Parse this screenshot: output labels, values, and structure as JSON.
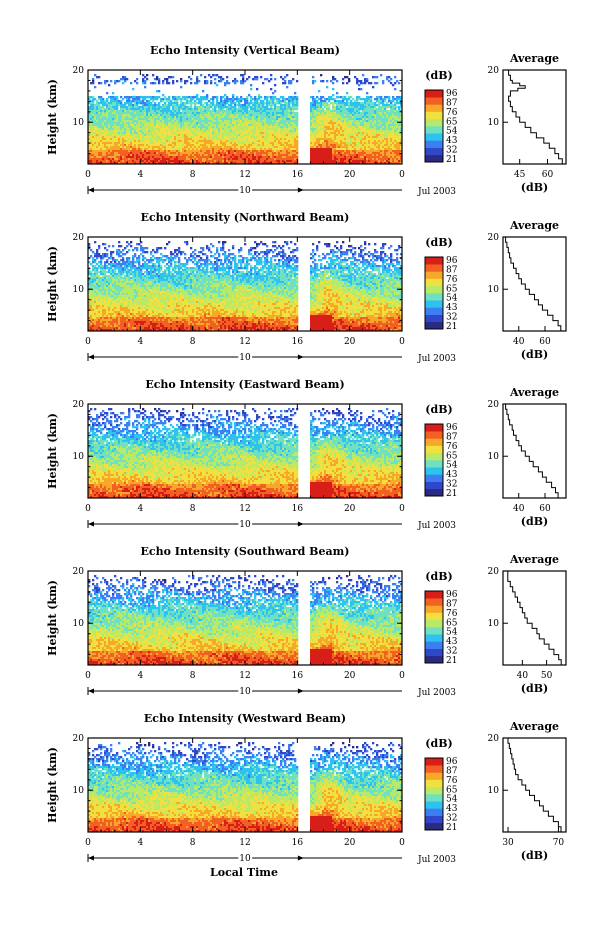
{
  "figure": {
    "xlabel_bottom": "Local Time",
    "date_label": "Jul 2003",
    "day_label": "10",
    "color_scale": [
      "#2a2a80",
      "#2f47c8",
      "#3b7ff0",
      "#2ec3ee",
      "#6fe0c0",
      "#b8ea6a",
      "#f0e040",
      "#f8a828",
      "#f26024",
      "#d81e18"
    ]
  },
  "chart_data": [
    {
      "type": "heatmap",
      "title": "Echo Intensity (Vertical Beam)",
      "ylabel": "Height (km)",
      "xlim": [
        0,
        24
      ],
      "ylim": [
        2,
        20
      ],
      "x_ticks": [
        "0",
        "4",
        "8",
        "12",
        "16",
        "20",
        "0"
      ],
      "y_ticks": [
        "10",
        "20"
      ],
      "colorbar": {
        "unit": "(dB)",
        "labels": [
          "96",
          "87",
          "76",
          "65",
          "54",
          "43",
          "32",
          "21"
        ]
      },
      "average": {
        "title": "Average",
        "xlabel": "(dB)",
        "x_ticks": [
          "45",
          "60"
        ],
        "xlim": [
          36,
          70
        ],
        "profile": [
          [
            2,
            70
          ],
          [
            3,
            68
          ],
          [
            4,
            66
          ],
          [
            5,
            64
          ],
          [
            6,
            61
          ],
          [
            7,
            58
          ],
          [
            8,
            54
          ],
          [
            9,
            51
          ],
          [
            10,
            48
          ],
          [
            11,
            45
          ],
          [
            12,
            43
          ],
          [
            13,
            41
          ],
          [
            14,
            40
          ],
          [
            15,
            39
          ],
          [
            16,
            40
          ],
          [
            16.5,
            44
          ],
          [
            17,
            48
          ],
          [
            17.5,
            45
          ],
          [
            18,
            41
          ],
          [
            19,
            40
          ],
          [
            20,
            39
          ]
        ]
      }
    },
    {
      "type": "heatmap",
      "title": "Echo Intensity (Northward Beam)",
      "ylabel": "Height (km)",
      "xlim": [
        0,
        24
      ],
      "ylim": [
        2,
        20
      ],
      "x_ticks": [
        "0",
        "4",
        "8",
        "12",
        "16",
        "20",
        "0"
      ],
      "y_ticks": [
        "10",
        "20"
      ],
      "colorbar": {
        "unit": "(dB)",
        "labels": [
          "96",
          "87",
          "76",
          "65",
          "54",
          "43",
          "32",
          "21"
        ]
      },
      "average": {
        "title": "Average",
        "xlabel": "(dB)",
        "x_ticks": [
          "40",
          "60"
        ],
        "xlim": [
          28,
          76
        ],
        "profile": [
          [
            2,
            74
          ],
          [
            3,
            72
          ],
          [
            4,
            70
          ],
          [
            5,
            66
          ],
          [
            6,
            62
          ],
          [
            7,
            58
          ],
          [
            8,
            55
          ],
          [
            9,
            52
          ],
          [
            10,
            48
          ],
          [
            11,
            45
          ],
          [
            12,
            42
          ],
          [
            13,
            40
          ],
          [
            14,
            38
          ],
          [
            15,
            36
          ],
          [
            16,
            34
          ],
          [
            17,
            33
          ],
          [
            18,
            32
          ],
          [
            19,
            31
          ],
          [
            20,
            30
          ]
        ]
      }
    },
    {
      "type": "heatmap",
      "title": "Echo Intensity (Eastward Beam)",
      "ylabel": "Height (km)",
      "xlim": [
        0,
        24
      ],
      "ylim": [
        2,
        20
      ],
      "x_ticks": [
        "0",
        "4",
        "8",
        "12",
        "16",
        "20",
        "0"
      ],
      "y_ticks": [
        "10",
        "20"
      ],
      "colorbar": {
        "unit": "(dB)",
        "labels": [
          "96",
          "87",
          "76",
          "65",
          "54",
          "43",
          "32",
          "21"
        ]
      },
      "average": {
        "title": "Average",
        "xlabel": "(dB)",
        "x_ticks": [
          "40",
          "60"
        ],
        "xlim": [
          28,
          76
        ],
        "profile": [
          [
            2,
            72
          ],
          [
            3,
            70
          ],
          [
            4,
            68
          ],
          [
            5,
            65
          ],
          [
            6,
            61
          ],
          [
            7,
            58
          ],
          [
            8,
            55
          ],
          [
            9,
            51
          ],
          [
            10,
            48
          ],
          [
            11,
            45
          ],
          [
            12,
            42
          ],
          [
            13,
            40
          ],
          [
            14,
            38
          ],
          [
            15,
            36
          ],
          [
            16,
            35
          ],
          [
            17,
            33
          ],
          [
            18,
            32
          ],
          [
            19,
            31
          ],
          [
            20,
            30
          ]
        ]
      }
    },
    {
      "type": "heatmap",
      "title": "Echo Intensity (Southward Beam)",
      "ylabel": "Height (km)",
      "xlim": [
        0,
        24
      ],
      "ylim": [
        2,
        20
      ],
      "x_ticks": [
        "0",
        "4",
        "8",
        "12",
        "16",
        "20",
        "0"
      ],
      "y_ticks": [
        "10",
        "20"
      ],
      "colorbar": {
        "unit": "(dB)",
        "labels": [
          "96",
          "87",
          "76",
          "65",
          "54",
          "43",
          "32",
          "21"
        ]
      },
      "average": {
        "title": "Average",
        "xlabel": "(dB)",
        "x_ticks": [
          "40",
          "50"
        ],
        "xlim": [
          32,
          58
        ],
        "profile": [
          [
            2,
            57
          ],
          [
            3,
            56
          ],
          [
            4,
            55
          ],
          [
            5,
            53
          ],
          [
            6,
            51
          ],
          [
            7,
            49
          ],
          [
            8,
            47
          ],
          [
            9,
            46
          ],
          [
            10,
            44
          ],
          [
            11,
            42
          ],
          [
            12,
            41
          ],
          [
            13,
            40
          ],
          [
            14,
            39
          ],
          [
            15,
            38
          ],
          [
            16,
            37
          ],
          [
            17,
            36
          ],
          [
            18,
            35
          ],
          [
            19,
            34
          ],
          [
            20,
            34
          ]
        ]
      }
    },
    {
      "type": "heatmap",
      "title": "Echo Intensity (Westward Beam)",
      "ylabel": "Height (km)",
      "xlim": [
        0,
        24
      ],
      "ylim": [
        2,
        20
      ],
      "x_ticks": [
        "0",
        "4",
        "8",
        "12",
        "16",
        "20",
        "0"
      ],
      "y_ticks": [
        "10",
        "20"
      ],
      "colorbar": {
        "unit": "(dB)",
        "labels": [
          "96",
          "87",
          "76",
          "65",
          "54",
          "43",
          "32",
          "21"
        ]
      },
      "average": {
        "title": "Average",
        "xlabel": "(dB)",
        "x_ticks": [
          "30",
          "70"
        ],
        "xlim": [
          26,
          76
        ],
        "profile": [
          [
            2,
            74
          ],
          [
            3,
            72
          ],
          [
            4,
            70
          ],
          [
            5,
            66
          ],
          [
            6,
            62
          ],
          [
            7,
            58
          ],
          [
            8,
            55
          ],
          [
            9,
            51
          ],
          [
            10,
            47
          ],
          [
            11,
            44
          ],
          [
            12,
            41
          ],
          [
            13,
            38
          ],
          [
            14,
            36
          ],
          [
            15,
            35
          ],
          [
            16,
            34
          ],
          [
            17,
            33
          ],
          [
            18,
            32
          ],
          [
            19,
            31
          ],
          [
            20,
            30
          ]
        ]
      }
    }
  ]
}
